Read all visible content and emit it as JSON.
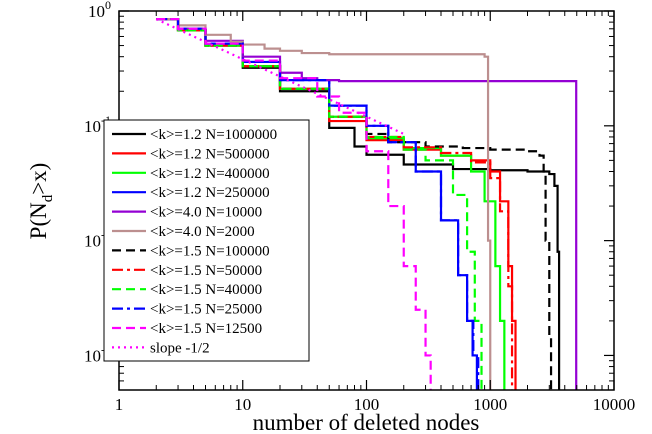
{
  "chart_data": {
    "type": "line",
    "title": "",
    "xlabel": "number of deleted nodes",
    "ylabel_main": "P(N",
    "ylabel_sub": "d",
    "ylabel_tail": ">x)",
    "x_scale": "log",
    "y_scale": "log",
    "xlim": [
      1,
      10000
    ],
    "ylim": [
      0.0005,
      1
    ],
    "x_ticks": [
      {
        "value": 1,
        "label": "1"
      },
      {
        "value": 10,
        "label": "10"
      },
      {
        "value": 100,
        "label": "100"
      },
      {
        "value": 1000,
        "label": "1000"
      },
      {
        "value": 10000,
        "label": "10000"
      }
    ],
    "y_ticks": [
      {
        "value": 0.001,
        "base": "10",
        "exp": "-3"
      },
      {
        "value": 0.01,
        "base": "10",
        "exp": "-2"
      },
      {
        "value": 0.1,
        "base": "10",
        "exp": "-1"
      },
      {
        "value": 1,
        "base": "10",
        "exp": "0"
      }
    ],
    "legend_position": "bottom-left",
    "series": [
      {
        "name": "<k>=1.2 N=1000000",
        "color": "#000000",
        "dash": "solid",
        "x": [
          2,
          3,
          5,
          10,
          20,
          50,
          80,
          100,
          200,
          500,
          1000,
          2000,
          3000,
          3300,
          3500,
          3600
        ],
        "y": [
          0.85,
          0.68,
          0.5,
          0.32,
          0.2,
          0.096,
          0.066,
          0.056,
          0.046,
          0.042,
          0.041,
          0.04,
          0.038,
          0.03,
          0.008,
          0.0005
        ]
      },
      {
        "name": "<k>=1.2 N=500000",
        "color": "#ff0000",
        "dash": "solid",
        "x": [
          2,
          3,
          5,
          10,
          20,
          50,
          100,
          200,
          400,
          700,
          1000,
          1200,
          1400,
          1500,
          1600
        ],
        "y": [
          0.85,
          0.68,
          0.5,
          0.33,
          0.21,
          0.11,
          0.075,
          0.062,
          0.055,
          0.05,
          0.04,
          0.022,
          0.006,
          0.002,
          0.0005
        ]
      },
      {
        "name": "<k>=1.2 N=400000",
        "color": "#00ff00",
        "dash": "solid",
        "x": [
          2,
          3,
          5,
          10,
          20,
          50,
          100,
          200,
          400,
          700,
          900,
          1100,
          1200,
          1300
        ],
        "y": [
          0.85,
          0.68,
          0.5,
          0.33,
          0.21,
          0.12,
          0.078,
          0.064,
          0.055,
          0.04,
          0.022,
          0.006,
          0.002,
          0.0005
        ]
      },
      {
        "name": "<k>=1.2 N=250000",
        "color": "#0000ff",
        "dash": "solid",
        "x": [
          2,
          3,
          5,
          10,
          20,
          50,
          100,
          150,
          250,
          400,
          550,
          650,
          720,
          780
        ],
        "y": [
          0.85,
          0.7,
          0.52,
          0.36,
          0.25,
          0.15,
          0.1,
          0.072,
          0.04,
          0.015,
          0.005,
          0.002,
          0.001,
          0.0005
        ]
      },
      {
        "name": "<k>=4.0 N=10000",
        "color": "#9400d3",
        "dash": "solid",
        "x": [
          2,
          3,
          5,
          10,
          20,
          30,
          40,
          60,
          100,
          1000,
          4900,
          4950
        ],
        "y": [
          0.85,
          0.7,
          0.55,
          0.4,
          0.29,
          0.26,
          0.25,
          0.245,
          0.245,
          0.245,
          0.245,
          0.0005
        ]
      },
      {
        "name": "<k>=4.0 N=2000",
        "color": "#bc8f8f",
        "dash": "solid",
        "x": [
          2,
          3,
          5,
          8,
          10,
          15,
          20,
          30,
          50,
          100,
          300,
          800,
          900,
          960,
          1000
        ],
        "y": [
          0.85,
          0.75,
          0.62,
          0.54,
          0.51,
          0.47,
          0.45,
          0.43,
          0.42,
          0.42,
          0.42,
          0.42,
          0.4,
          0.01,
          0.0005
        ]
      },
      {
        "name": "<k>=1.5 N=100000",
        "color": "#000000",
        "dash": "dash",
        "x": [
          2,
          3,
          5,
          10,
          20,
          50,
          100,
          150,
          300,
          600,
          1000,
          2000,
          2500,
          2700,
          2800,
          3000,
          3100
        ],
        "y": [
          0.85,
          0.68,
          0.5,
          0.33,
          0.21,
          0.12,
          0.085,
          0.072,
          0.066,
          0.064,
          0.062,
          0.06,
          0.055,
          0.04,
          0.01,
          0.0015,
          0.0005
        ]
      },
      {
        "name": "<k>=1.5 N=50000",
        "color": "#ff0000",
        "dash": "dashdot",
        "x": [
          2,
          3,
          5,
          10,
          20,
          50,
          100,
          200,
          400,
          700,
          1000,
          1200,
          1400,
          1500
        ],
        "y": [
          0.85,
          0.68,
          0.5,
          0.33,
          0.21,
          0.12,
          0.08,
          0.065,
          0.058,
          0.048,
          0.035,
          0.018,
          0.004,
          0.0005
        ]
      },
      {
        "name": "<k>=1.5 N=40000",
        "color": "#00ff00",
        "dash": "dash",
        "x": [
          2,
          3,
          5,
          10,
          20,
          50,
          100,
          200,
          300,
          500,
          650,
          750,
          850
        ],
        "y": [
          0.85,
          0.68,
          0.5,
          0.33,
          0.21,
          0.12,
          0.08,
          0.062,
          0.05,
          0.025,
          0.008,
          0.002,
          0.0005
        ]
      },
      {
        "name": "<k>=1.5 N=25000",
        "color": "#0000ff",
        "dash": "dashdot",
        "x": [
          2,
          3,
          5,
          10,
          20,
          50,
          100,
          150,
          250,
          400,
          550,
          650,
          730,
          800
        ],
        "y": [
          0.85,
          0.7,
          0.52,
          0.36,
          0.25,
          0.15,
          0.1,
          0.072,
          0.04,
          0.015,
          0.005,
          0.002,
          0.001,
          0.0005
        ]
      },
      {
        "name": "<k>=1.5 N=12500",
        "color": "#ff00ff",
        "dash": "dash",
        "x": [
          2,
          3,
          5,
          10,
          20,
          40,
          60,
          100,
          150,
          200,
          250,
          300,
          330
        ],
        "y": [
          0.85,
          0.7,
          0.52,
          0.37,
          0.26,
          0.18,
          0.13,
          0.06,
          0.02,
          0.006,
          0.0025,
          0.001,
          0.0005
        ]
      },
      {
        "name": "slope -1/2",
        "color": "#ff00ff",
        "dash": "dot",
        "x": [
          2,
          200
        ],
        "y": [
          0.85,
          0.085
        ]
      }
    ]
  }
}
